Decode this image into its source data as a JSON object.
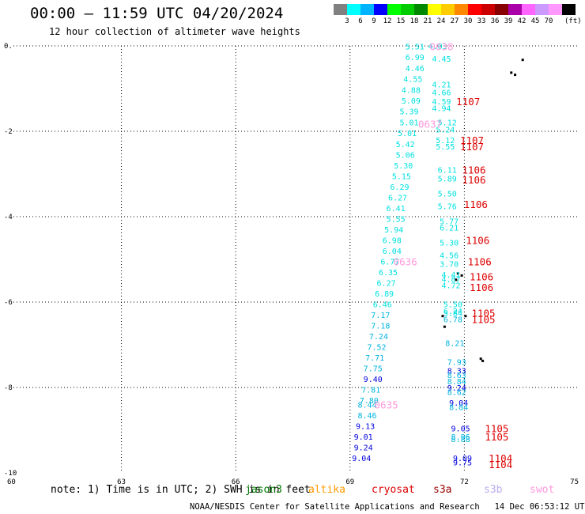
{
  "header": {
    "title": "00:00 – 11:59 UTC 04/20/2024",
    "subtitle": "12 hour collection of altimeter wave heights"
  },
  "legend": {
    "unit": "(ft)",
    "colors": [
      "#808080",
      "#00ffff",
      "#00b4ff",
      "#0000ff",
      "#00ff00",
      "#00cc00",
      "#008800",
      "#ffff00",
      "#ffcc00",
      "#ff8800",
      "#ff0000",
      "#cc0000",
      "#880000",
      "#aa00aa",
      "#ff66ff",
      "#cc99ff",
      "#ff99ff",
      "#000000"
    ],
    "values": [
      "3",
      "6",
      "9",
      "12",
      "15",
      "18",
      "21",
      "24",
      "27",
      "30",
      "33",
      "36",
      "39",
      "42",
      "45",
      "70"
    ]
  },
  "note": {
    "text": "note: 1) Time is in UTC; 2) SWH is in feet",
    "satellites": [
      {
        "name": "jason3",
        "color": "#007700"
      },
      {
        "name": "altika",
        "color": "#ff9900"
      },
      {
        "name": "cryosat",
        "color": "#dd0000"
      },
      {
        "name": "s3a",
        "color": "#990000"
      },
      {
        "name": "s3b",
        "color": "#bbaaee"
      },
      {
        "name": "swot",
        "color": "#ff99dd"
      }
    ]
  },
  "footer": {
    "credit": "NOAA/NESDIS Center for Satellite Applications and Research   14 Dec 06:53:12 UTC 2024"
  },
  "chart_data": {
    "type": "scatter",
    "title": "00:00 – 11:59 UTC 04/20/2024",
    "xlim": [
      60,
      75
    ],
    "ylim": [
      -10,
      0
    ],
    "xticks": [
      "60",
      "63",
      "66",
      "69",
      "72",
      "75"
    ],
    "yticks": [
      "0.",
      "-2",
      "-4",
      "-6",
      "-8",
      "-10"
    ],
    "grid": true,
    "points": [
      {
        "x": 70.7,
        "y": -0.01,
        "label": "5.51",
        "color": "#00e0e0"
      },
      {
        "x": 71.3,
        "y": 0.0,
        "label": "4.03",
        "color": "#00e0e0"
      },
      {
        "x": 70.7,
        "y": -0.26,
        "label": "6.99",
        "color": "#00e0e0"
      },
      {
        "x": 71.4,
        "y": -0.3,
        "label": "4.45",
        "color": "#00e0e0"
      },
      {
        "x": 70.7,
        "y": -0.52,
        "label": "4.46",
        "color": "#00e0e0"
      },
      {
        "x": 70.65,
        "y": -0.77,
        "label": "4.55",
        "color": "#00e0e0"
      },
      {
        "x": 71.4,
        "y": -0.9,
        "label": "4.21",
        "color": "#00e0e0"
      },
      {
        "x": 70.6,
        "y": -1.03,
        "label": "4.88",
        "color": "#00e0e0"
      },
      {
        "x": 71.4,
        "y": -1.08,
        "label": "4.66",
        "color": "#00e0e0"
      },
      {
        "x": 70.6,
        "y": -1.28,
        "label": "5.09",
        "color": "#00e0e0"
      },
      {
        "x": 71.4,
        "y": -1.3,
        "label": "4.59",
        "color": "#00e0e0"
      },
      {
        "x": 71.4,
        "y": -1.45,
        "label": "4.94",
        "color": "#00e0e0"
      },
      {
        "x": 70.55,
        "y": -1.53,
        "label": "5.39",
        "color": "#00e0e0"
      },
      {
        "x": 70.55,
        "y": -1.79,
        "label": "5.01",
        "color": "#00e0e0"
      },
      {
        "x": 71.55,
        "y": -1.79,
        "label": "5.12",
        "color": "#00e0e0"
      },
      {
        "x": 71.5,
        "y": -1.95,
        "label": "5.24",
        "color": "#00e0e0"
      },
      {
        "x": 70.5,
        "y": -2.04,
        "label": "5.01",
        "color": "#00e0e0"
      },
      {
        "x": 71.5,
        "y": -2.2,
        "label": "5.12",
        "color": "#00e0e0"
      },
      {
        "x": 70.45,
        "y": -2.3,
        "label": "5.42",
        "color": "#00e0e0"
      },
      {
        "x": 71.5,
        "y": -2.35,
        "label": "5.55",
        "color": "#00e0e0"
      },
      {
        "x": 70.45,
        "y": -2.55,
        "label": "5.06",
        "color": "#00e0e0"
      },
      {
        "x": 70.4,
        "y": -2.8,
        "label": "5.30",
        "color": "#00e0e0"
      },
      {
        "x": 71.55,
        "y": -2.9,
        "label": "6.11",
        "color": "#00e0e0"
      },
      {
        "x": 70.35,
        "y": -3.05,
        "label": "5.15",
        "color": "#00e0e0"
      },
      {
        "x": 71.55,
        "y": -3.1,
        "label": "5.89",
        "color": "#00e0e0"
      },
      {
        "x": 70.3,
        "y": -3.3,
        "label": "6.29",
        "color": "#00e0e0"
      },
      {
        "x": 71.55,
        "y": -3.45,
        "label": "5.50",
        "color": "#00e0e0"
      },
      {
        "x": 70.25,
        "y": -3.55,
        "label": "6.27",
        "color": "#00e0e0"
      },
      {
        "x": 71.55,
        "y": -3.75,
        "label": "5.76",
        "color": "#00e0e0"
      },
      {
        "x": 70.2,
        "y": -3.8,
        "label": "6.41",
        "color": "#00e0e0"
      },
      {
        "x": 70.2,
        "y": -4.05,
        "label": "5.55",
        "color": "#00e0e0"
      },
      {
        "x": 71.6,
        "y": -4.1,
        "label": "5.77",
        "color": "#00e0e0"
      },
      {
        "x": 71.6,
        "y": -4.25,
        "label": "6.21",
        "color": "#00e0e0"
      },
      {
        "x": 70.15,
        "y": -4.3,
        "label": "5.94",
        "color": "#00e0e0"
      },
      {
        "x": 70.1,
        "y": -4.55,
        "label": "6.98",
        "color": "#00e0e0"
      },
      {
        "x": 71.6,
        "y": -4.6,
        "label": "5.30",
        "color": "#00e0e0"
      },
      {
        "x": 70.1,
        "y": -4.8,
        "label": "6.04",
        "color": "#00e0e0"
      },
      {
        "x": 71.6,
        "y": -4.9,
        "label": "4.56",
        "color": "#00e0e0"
      },
      {
        "x": 70.05,
        "y": -5.05,
        "label": "6.77",
        "color": "#00e0e0"
      },
      {
        "x": 71.6,
        "y": -5.1,
        "label": "3.70",
        "color": "#00e0e0"
      },
      {
        "x": 70.0,
        "y": -5.3,
        "label": "6.35",
        "color": "#00e0e0"
      },
      {
        "x": 71.65,
        "y": -5.35,
        "label": "4.41",
        "color": "#00e0e0"
      },
      {
        "x": 71.65,
        "y": -5.45,
        "label": "4.87",
        "color": "#00e0e0"
      },
      {
        "x": 69.95,
        "y": -5.55,
        "label": "6.27",
        "color": "#00e0e0"
      },
      {
        "x": 71.65,
        "y": -5.6,
        "label": "4.72",
        "color": "#00e0e0"
      },
      {
        "x": 69.9,
        "y": -5.8,
        "label": "6.89",
        "color": "#00e0e0"
      },
      {
        "x": 69.85,
        "y": -6.05,
        "label": "6.46",
        "color": "#00e0e0"
      },
      {
        "x": 71.7,
        "y": -6.05,
        "label": "5.50",
        "color": "#00e0e0"
      },
      {
        "x": 71.7,
        "y": -6.2,
        "label": "6.24",
        "color": "#00e0e0"
      },
      {
        "x": 71.7,
        "y": -6.25,
        "label": "5.84",
        "color": "#00e0e0"
      },
      {
        "x": 69.8,
        "y": -6.3,
        "label": "7.17",
        "color": "#00b4e0"
      },
      {
        "x": 71.7,
        "y": -6.4,
        "label": "6.78",
        "color": "#00b4e0"
      },
      {
        "x": 69.8,
        "y": -6.55,
        "label": "7.18",
        "color": "#00b4e0"
      },
      {
        "x": 69.75,
        "y": -6.8,
        "label": "7.24",
        "color": "#00b4e0"
      },
      {
        "x": 71.75,
        "y": -6.95,
        "label": "8.21",
        "color": "#00b4e0"
      },
      {
        "x": 69.7,
        "y": -7.05,
        "label": "7.52",
        "color": "#00b4e0"
      },
      {
        "x": 69.65,
        "y": -7.3,
        "label": "7.71",
        "color": "#00b4e0"
      },
      {
        "x": 71.8,
        "y": -7.4,
        "label": "7.93",
        "color": "#00b4e0"
      },
      {
        "x": 69.6,
        "y": -7.55,
        "label": "7.75",
        "color": "#00b4e0"
      },
      {
        "x": 71.8,
        "y": -7.6,
        "label": "8.33",
        "color": "#0000dd"
      },
      {
        "x": 71.8,
        "y": -7.7,
        "label": "8.63",
        "color": "#00b4e0"
      },
      {
        "x": 69.6,
        "y": -7.8,
        "label": "9.40",
        "color": "#0000dd"
      },
      {
        "x": 71.8,
        "y": -7.85,
        "label": "8.84",
        "color": "#00b4e0"
      },
      {
        "x": 71.8,
        "y": -8.0,
        "label": "9.24",
        "color": "#0000dd"
      },
      {
        "x": 69.55,
        "y": -8.05,
        "label": "7.81",
        "color": "#00b4e0"
      },
      {
        "x": 71.8,
        "y": -8.1,
        "label": "8.62",
        "color": "#00b4e0"
      },
      {
        "x": 71.85,
        "y": -8.35,
        "label": "9.04",
        "color": "#0000dd"
      },
      {
        "x": 69.5,
        "y": -8.3,
        "label": "7.80",
        "color": "#00b4e0"
      },
      {
        "x": 69.45,
        "y": -8.4,
        "label": "8.44",
        "color": "#00b4e0"
      },
      {
        "x": 71.85,
        "y": -8.45,
        "label": "8.84",
        "color": "#00b4e0"
      },
      {
        "x": 69.45,
        "y": -8.65,
        "label": "8.46",
        "color": "#00b4e0"
      },
      {
        "x": 69.4,
        "y": -8.9,
        "label": "9.13",
        "color": "#0000dd"
      },
      {
        "x": 71.9,
        "y": -8.95,
        "label": "9.05",
        "color": "#0000dd"
      },
      {
        "x": 71.9,
        "y": -9.15,
        "label": "8.96",
        "color": "#00b4e0"
      },
      {
        "x": 69.35,
        "y": -9.15,
        "label": "9.01",
        "color": "#0000dd"
      },
      {
        "x": 71.9,
        "y": -9.2,
        "label": "8.88",
        "color": "#00b4e0"
      },
      {
        "x": 69.35,
        "y": -9.4,
        "label": "9.24",
        "color": "#0000dd"
      },
      {
        "x": 71.95,
        "y": -9.65,
        "label": "9.09",
        "color": "#0000dd"
      },
      {
        "x": 69.3,
        "y": -9.65,
        "label": "9.04",
        "color": "#0000dd"
      },
      {
        "x": 71.95,
        "y": -9.75,
        "label": "9.75",
        "color": "#0000dd"
      }
    ],
    "time_labels": [
      {
        "x": 71.4,
        "y": -0.01,
        "label": "0638",
        "color": "#ff99dd"
      },
      {
        "x": 72.1,
        "y": -1.3,
        "label": "1107",
        "color": "#dd0000"
      },
      {
        "x": 71.1,
        "y": -1.82,
        "label": "0637",
        "color": "#ff99dd"
      },
      {
        "x": 72.2,
        "y": -2.2,
        "label": "1107",
        "color": "#dd0000"
      },
      {
        "x": 72.2,
        "y": -2.35,
        "label": "1107",
        "color": "#dd0000"
      },
      {
        "x": 72.25,
        "y": -2.9,
        "label": "1106",
        "color": "#dd0000"
      },
      {
        "x": 72.25,
        "y": -3.13,
        "label": "1106",
        "color": "#dd0000"
      },
      {
        "x": 72.3,
        "y": -3.7,
        "label": "1106",
        "color": "#dd0000"
      },
      {
        "x": 72.35,
        "y": -4.55,
        "label": "1106",
        "color": "#dd0000"
      },
      {
        "x": 70.45,
        "y": -5.05,
        "label": "0636",
        "color": "#ff99dd"
      },
      {
        "x": 72.4,
        "y": -5.05,
        "label": "1106",
        "color": "#dd0000"
      },
      {
        "x": 72.45,
        "y": -5.4,
        "label": "1106",
        "color": "#dd0000"
      },
      {
        "x": 72.45,
        "y": -5.65,
        "label": "1106",
        "color": "#dd0000"
      },
      {
        "x": 72.5,
        "y": -6.25,
        "label": "1105",
        "color": "#dd0000"
      },
      {
        "x": 72.5,
        "y": -6.4,
        "label": "1105",
        "color": "#dd0000"
      },
      {
        "x": 69.95,
        "y": -8.4,
        "label": "0635",
        "color": "#ff99dd"
      },
      {
        "x": 72.85,
        "y": -8.95,
        "label": "1105",
        "color": "#dd0000"
      },
      {
        "x": 72.85,
        "y": -9.15,
        "label": "1105",
        "color": "#dd0000"
      },
      {
        "x": 72.95,
        "y": -9.65,
        "label": "1104",
        "color": "#dd0000"
      },
      {
        "x": 72.95,
        "y": -9.8,
        "label": "1104",
        "color": "#dd0000"
      }
    ],
    "coast_points": [
      {
        "x": 73.5,
        "y": -0.3
      },
      {
        "x": 73.2,
        "y": -0.6
      },
      {
        "x": 73.3,
        "y": -0.65
      },
      {
        "x": 71.8,
        "y": -5.3
      },
      {
        "x": 71.9,
        "y": -5.35
      },
      {
        "x": 71.75,
        "y": -5.45
      },
      {
        "x": 71.4,
        "y": -6.3
      },
      {
        "x": 71.45,
        "y": -6.55
      },
      {
        "x": 72.0,
        "y": -6.3
      },
      {
        "x": 72.4,
        "y": -7.3
      },
      {
        "x": 72.45,
        "y": -7.35
      }
    ]
  }
}
